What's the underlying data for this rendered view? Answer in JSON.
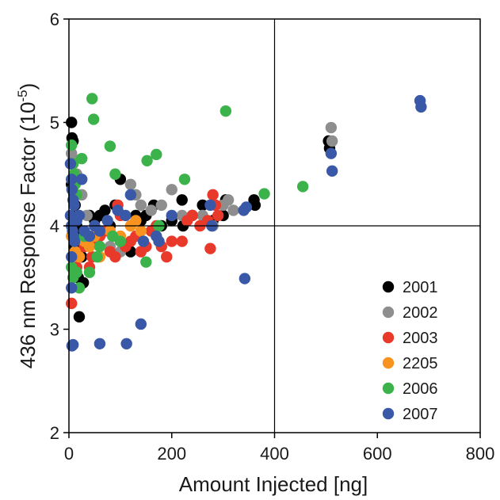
{
  "chart_data": {
    "type": "scatter",
    "xlabel": "Amount Injected [ng]",
    "ylabel": {
      "main": "436 nm Response Factor (10",
      "sup": "-5",
      "end": ")"
    },
    "xlim": [
      0,
      800
    ],
    "ylim": [
      2,
      6
    ],
    "xticks": [
      0,
      200,
      400,
      600,
      800
    ],
    "yticks": [
      2,
      3,
      4,
      5,
      6
    ],
    "reference_lines": {
      "x": 400,
      "y": 4
    },
    "legend_position": "bottom-right",
    "series": [
      {
        "name": "2001",
        "color": "#000000",
        "points": [
          [
            5,
            5.0
          ],
          [
            6,
            4.85
          ],
          [
            8,
            4.82
          ],
          [
            5,
            4.4
          ],
          [
            10,
            4.3
          ],
          [
            12,
            4.2
          ],
          [
            5,
            4.1
          ],
          [
            15,
            4.0
          ],
          [
            20,
            3.9
          ],
          [
            10,
            3.8
          ],
          [
            25,
            3.7
          ],
          [
            18,
            3.5
          ],
          [
            28,
            3.45
          ],
          [
            20,
            3.12
          ],
          [
            40,
            4.1
          ],
          [
            50,
            4.05
          ],
          [
            60,
            4.1
          ],
          [
            70,
            4.15
          ],
          [
            80,
            4.0
          ],
          [
            90,
            4.2
          ],
          [
            100,
            4.45
          ],
          [
            110,
            3.8
          ],
          [
            120,
            3.75
          ],
          [
            130,
            4.1
          ],
          [
            140,
            4.05
          ],
          [
            150,
            4.1
          ],
          [
            165,
            4.2
          ],
          [
            180,
            4.0
          ],
          [
            200,
            4.05
          ],
          [
            220,
            4.25
          ],
          [
            222,
            4.0
          ],
          [
            240,
            4.1
          ],
          [
            260,
            4.2
          ],
          [
            280,
            4.05
          ],
          [
            300,
            4.1
          ],
          [
            305,
            4.25
          ],
          [
            360,
            4.25
          ],
          [
            362,
            4.2
          ],
          [
            505,
            4.82
          ],
          [
            507,
            4.75
          ]
        ]
      },
      {
        "name": "2002",
        "color": "#8e8e8e",
        "points": [
          [
            5,
            4.7
          ],
          [
            8,
            4.65
          ],
          [
            15,
            4.5
          ],
          [
            25,
            4.3
          ],
          [
            35,
            4.1
          ],
          [
            50,
            4.0
          ],
          [
            60,
            3.9
          ],
          [
            80,
            3.8
          ],
          [
            100,
            3.75
          ],
          [
            120,
            4.4
          ],
          [
            130,
            4.3
          ],
          [
            140,
            4.2
          ],
          [
            160,
            4.15
          ],
          [
            180,
            4.2
          ],
          [
            200,
            4.35
          ],
          [
            220,
            4.1
          ],
          [
            260,
            4.1
          ],
          [
            280,
            4.0
          ],
          [
            300,
            4.2
          ],
          [
            310,
            4.25
          ],
          [
            320,
            4.15
          ],
          [
            510,
            4.95
          ],
          [
            512,
            4.82
          ]
        ]
      },
      {
        "name": "2003",
        "color": "#e8392a",
        "points": [
          [
            5,
            3.25
          ],
          [
            10,
            3.55
          ],
          [
            15,
            3.6
          ],
          [
            20,
            3.7
          ],
          [
            30,
            3.8
          ],
          [
            40,
            3.6
          ],
          [
            45,
            3.7
          ],
          [
            50,
            3.85
          ],
          [
            60,
            3.9
          ],
          [
            70,
            3.95
          ],
          [
            80,
            3.75
          ],
          [
            90,
            3.7
          ],
          [
            95,
            4.2
          ],
          [
            100,
            4.1
          ],
          [
            110,
            3.8
          ],
          [
            120,
            3.85
          ],
          [
            130,
            3.9
          ],
          [
            140,
            3.75
          ],
          [
            150,
            3.8
          ],
          [
            160,
            3.95
          ],
          [
            170,
            4.0
          ],
          [
            180,
            3.8
          ],
          [
            190,
            3.7
          ],
          [
            200,
            3.85
          ],
          [
            220,
            3.85
          ],
          [
            230,
            4.05
          ],
          [
            240,
            4.1
          ],
          [
            255,
            4.0
          ],
          [
            270,
            4.05
          ],
          [
            275,
            3.78
          ],
          [
            280,
            4.3
          ],
          [
            285,
            4.2
          ],
          [
            290,
            4.1
          ]
        ]
      },
      {
        "name": "2205",
        "color": "#f7931e",
        "points": [
          [
            5,
            3.9
          ],
          [
            12,
            3.75
          ],
          [
            20,
            3.7
          ],
          [
            30,
            3.85
          ],
          [
            40,
            3.8
          ],
          [
            50,
            3.9
          ],
          [
            60,
            3.7
          ],
          [
            80,
            3.95
          ],
          [
            100,
            3.9
          ],
          [
            120,
            4.0
          ],
          [
            130,
            4.05
          ],
          [
            140,
            3.95
          ]
        ]
      },
      {
        "name": "2006",
        "color": "#3cb34a",
        "points": [
          [
            5,
            4.78
          ],
          [
            8,
            4.6
          ],
          [
            10,
            4.5
          ],
          [
            12,
            4.4
          ],
          [
            15,
            4.3
          ],
          [
            5,
            3.6
          ],
          [
            8,
            3.5
          ],
          [
            15,
            3.55
          ],
          [
            20,
            3.4
          ],
          [
            25,
            4.65
          ],
          [
            30,
            3.9
          ],
          [
            40,
            3.55
          ],
          [
            45,
            5.23
          ],
          [
            48,
            5.03
          ],
          [
            55,
            3.7
          ],
          [
            60,
            3.8
          ],
          [
            80,
            4.77
          ],
          [
            85,
            3.9
          ],
          [
            90,
            4.5
          ],
          [
            100,
            3.85
          ],
          [
            150,
            3.65
          ],
          [
            152,
            4.63
          ],
          [
            170,
            4.69
          ],
          [
            175,
            4.0
          ],
          [
            225,
            4.45
          ],
          [
            305,
            5.11
          ],
          [
            380,
            4.31
          ],
          [
            455,
            4.38
          ]
        ]
      },
      {
        "name": "2007",
        "color": "#3a58a8",
        "points": [
          [
            3,
            4.6
          ],
          [
            5,
            4.45
          ],
          [
            6,
            4.35
          ],
          [
            8,
            4.25
          ],
          [
            10,
            4.2
          ],
          [
            3,
            4.1
          ],
          [
            5,
            4.0
          ],
          [
            7,
            3.95
          ],
          [
            9,
            3.9
          ],
          [
            11,
            3.85
          ],
          [
            5,
            3.7
          ],
          [
            5,
            3.4
          ],
          [
            6,
            2.84
          ],
          [
            8,
            2.85
          ],
          [
            15,
            4.05
          ],
          [
            20,
            4.1
          ],
          [
            25,
            4.45
          ],
          [
            30,
            3.95
          ],
          [
            40,
            3.9
          ],
          [
            50,
            4.0
          ],
          [
            60,
            2.86
          ],
          [
            60,
            3.95
          ],
          [
            75,
            4.05
          ],
          [
            95,
            4.15
          ],
          [
            110,
            4.1
          ],
          [
            112,
            2.86
          ],
          [
            120,
            4.3
          ],
          [
            140,
            3.05
          ],
          [
            145,
            3.85
          ],
          [
            170,
            3.9
          ],
          [
            175,
            3.85
          ],
          [
            200,
            4.1
          ],
          [
            275,
            4.2
          ],
          [
            278,
            4.0
          ],
          [
            340,
            4.15
          ],
          [
            342,
            3.49
          ],
          [
            345,
            4.18
          ],
          [
            510,
            4.7
          ],
          [
            512,
            4.53
          ],
          [
            683,
            5.21
          ],
          [
            685,
            5.15
          ]
        ]
      }
    ]
  }
}
